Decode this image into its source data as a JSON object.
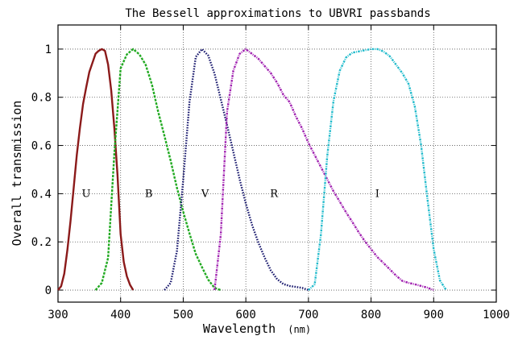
{
  "chart_data": {
    "type": "line",
    "title": "The Bessell approximations to UBVRI passbands",
    "xlabel": "Wavelength",
    "xlabel_unit": "(nm)",
    "ylabel": "Overall transmission",
    "xlim": [
      300,
      1000
    ],
    "ylim": [
      -0.05,
      1.1
    ],
    "x_ticks": [
      300,
      400,
      500,
      600,
      700,
      800,
      900,
      1000
    ],
    "y_ticks": [
      0,
      0.2,
      0.4,
      0.6,
      0.8,
      1
    ],
    "x_tick_labels": [
      "300",
      "400",
      "500",
      "600",
      "700",
      "800",
      "900",
      "1000"
    ],
    "y_tick_labels": [
      "0",
      "0.2",
      "0.4",
      "0.6",
      "0.8",
      "1"
    ],
    "grid": true,
    "series": [
      {
        "name": "U",
        "color": "#8B1A1A",
        "style": "solid",
        "label_at": [
          345,
          0.4
        ],
        "points": [
          [
            300,
            0.0
          ],
          [
            305,
            0.016
          ],
          [
            310,
            0.068
          ],
          [
            315,
            0.167
          ],
          [
            320,
            0.287
          ],
          [
            325,
            0.423
          ],
          [
            330,
            0.56
          ],
          [
            335,
            0.673
          ],
          [
            340,
            0.772
          ],
          [
            345,
            0.841
          ],
          [
            350,
            0.905
          ],
          [
            355,
            0.943
          ],
          [
            360,
            0.981
          ],
          [
            365,
            0.993
          ],
          [
            370,
            1.0
          ],
          [
            375,
            0.993
          ],
          [
            380,
            0.936
          ],
          [
            385,
            0.828
          ],
          [
            390,
            0.672
          ],
          [
            395,
            0.479
          ],
          [
            400,
            0.232
          ],
          [
            405,
            0.117
          ],
          [
            410,
            0.057
          ],
          [
            415,
            0.022
          ],
          [
            420,
            0.0
          ]
        ]
      },
      {
        "name": "B",
        "color": "#22AA22",
        "style": "dashed",
        "label_at": [
          445,
          0.4
        ],
        "points": [
          [
            360,
            0.0
          ],
          [
            370,
            0.03
          ],
          [
            380,
            0.134
          ],
          [
            390,
            0.567
          ],
          [
            400,
            0.92
          ],
          [
            410,
            0.978
          ],
          [
            420,
            1.0
          ],
          [
            430,
            0.978
          ],
          [
            440,
            0.935
          ],
          [
            450,
            0.853
          ],
          [
            460,
            0.74
          ],
          [
            470,
            0.64
          ],
          [
            480,
            0.536
          ],
          [
            490,
            0.424
          ],
          [
            500,
            0.325
          ],
          [
            510,
            0.235
          ],
          [
            520,
            0.15
          ],
          [
            530,
            0.095
          ],
          [
            540,
            0.043
          ],
          [
            550,
            0.009
          ],
          [
            560,
            0.0
          ]
        ]
      },
      {
        "name": "V",
        "color": "#1A1A6E",
        "style": "dotted",
        "label_at": [
          535,
          0.4
        ],
        "points": [
          [
            470,
            0.0
          ],
          [
            480,
            0.03
          ],
          [
            490,
            0.163
          ],
          [
            500,
            0.458
          ],
          [
            510,
            0.78
          ],
          [
            520,
            0.967
          ],
          [
            530,
            1.0
          ],
          [
            540,
            0.973
          ],
          [
            550,
            0.898
          ],
          [
            560,
            0.792
          ],
          [
            570,
            0.684
          ],
          [
            580,
            0.574
          ],
          [
            590,
            0.461
          ],
          [
            600,
            0.359
          ],
          [
            610,
            0.27
          ],
          [
            620,
            0.197
          ],
          [
            630,
            0.135
          ],
          [
            640,
            0.081
          ],
          [
            650,
            0.045
          ],
          [
            660,
            0.025
          ],
          [
            670,
            0.017
          ],
          [
            680,
            0.013
          ],
          [
            690,
            0.009
          ],
          [
            700,
            0.0
          ]
        ]
      },
      {
        "name": "R",
        "color": "#A020B0",
        "style": "dashdot",
        "label_at": [
          645,
          0.4
        ],
        "points": [
          [
            550,
            0.0
          ],
          [
            560,
            0.23
          ],
          [
            570,
            0.74
          ],
          [
            580,
            0.91
          ],
          [
            590,
            0.98
          ],
          [
            600,
            1.0
          ],
          [
            610,
            0.98
          ],
          [
            620,
            0.96
          ],
          [
            630,
            0.93
          ],
          [
            640,
            0.9
          ],
          [
            650,
            0.86
          ],
          [
            660,
            0.81
          ],
          [
            670,
            0.78
          ],
          [
            680,
            0.72
          ],
          [
            690,
            0.67
          ],
          [
            700,
            0.61
          ],
          [
            710,
            0.56
          ],
          [
            720,
            0.51
          ],
          [
            730,
            0.46
          ],
          [
            740,
            0.41
          ],
          [
            750,
            0.367
          ],
          [
            760,
            0.323
          ],
          [
            770,
            0.283
          ],
          [
            780,
            0.241
          ],
          [
            790,
            0.203
          ],
          [
            800,
            0.17
          ],
          [
            810,
            0.137
          ],
          [
            820,
            0.112
          ],
          [
            830,
            0.086
          ],
          [
            840,
            0.06
          ],
          [
            850,
            0.038
          ],
          [
            860,
            0.03
          ],
          [
            870,
            0.024
          ],
          [
            880,
            0.017
          ],
          [
            890,
            0.01
          ],
          [
            900,
            0.0
          ]
        ]
      },
      {
        "name": "I",
        "color": "#22BBCC",
        "style": "dashdot",
        "label_at": [
          810,
          0.4
        ],
        "points": [
          [
            700,
            0.0
          ],
          [
            710,
            0.024
          ],
          [
            720,
            0.232
          ],
          [
            730,
            0.555
          ],
          [
            740,
            0.785
          ],
          [
            750,
            0.91
          ],
          [
            760,
            0.965
          ],
          [
            770,
            0.985
          ],
          [
            780,
            0.99
          ],
          [
            790,
            0.995
          ],
          [
            800,
            1.0
          ],
          [
            810,
            1.0
          ],
          [
            820,
            0.99
          ],
          [
            830,
            0.97
          ],
          [
            840,
            0.935
          ],
          [
            850,
            0.9
          ],
          [
            860,
            0.855
          ],
          [
            870,
            0.76
          ],
          [
            880,
            0.6
          ],
          [
            890,
            0.38
          ],
          [
            900,
            0.17
          ],
          [
            910,
            0.04
          ],
          [
            920,
            0.0
          ]
        ]
      }
    ]
  }
}
